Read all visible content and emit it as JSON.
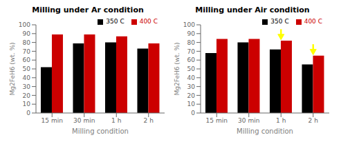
{
  "chart_data": [
    {
      "type": "bar",
      "title": "Milling under Ar condition",
      "categories": [
        "15 min",
        "30 min",
        "1 h",
        "2 h"
      ],
      "series": [
        {
          "name": "350 C",
          "color": "#000000",
          "values": [
            52,
            79,
            80,
            73
          ]
        },
        {
          "name": "400 C",
          "color": "#cc0000",
          "values": [
            89,
            89,
            87,
            79
          ]
        }
      ],
      "xlabel": "Milling condition",
      "ylabel": "Mg2FeH6 (wt. %)",
      "ylim": [
        0,
        100
      ],
      "yticks": [
        0,
        10,
        20,
        30,
        40,
        50,
        60,
        70,
        80,
        90,
        100
      ],
      "legend": "upper right"
    },
    {
      "type": "bar",
      "title": "Milling under Air condition",
      "categories": [
        "15 min",
        "30 min",
        "1 h",
        "2 h"
      ],
      "series": [
        {
          "name": "350 C",
          "color": "#000000",
          "values": [
            68,
            80,
            72,
            55
          ]
        },
        {
          "name": "400 C",
          "color": "#cc0000",
          "values": [
            84,
            84,
            82,
            65
          ]
        }
      ],
      "xlabel": "Milling condition",
      "ylabel": "Mg2FeH6 (wt. %)",
      "ylim": [
        0,
        100
      ],
      "yticks": [
        0,
        10,
        20,
        30,
        40,
        50,
        60,
        70,
        80,
        90,
        100
      ],
      "legend": "upper right",
      "annotations": [
        {
          "type": "arrow",
          "category": "1 h",
          "color": "yellow"
        },
        {
          "type": "arrow",
          "category": "2 h",
          "color": "yellow"
        }
      ]
    }
  ]
}
